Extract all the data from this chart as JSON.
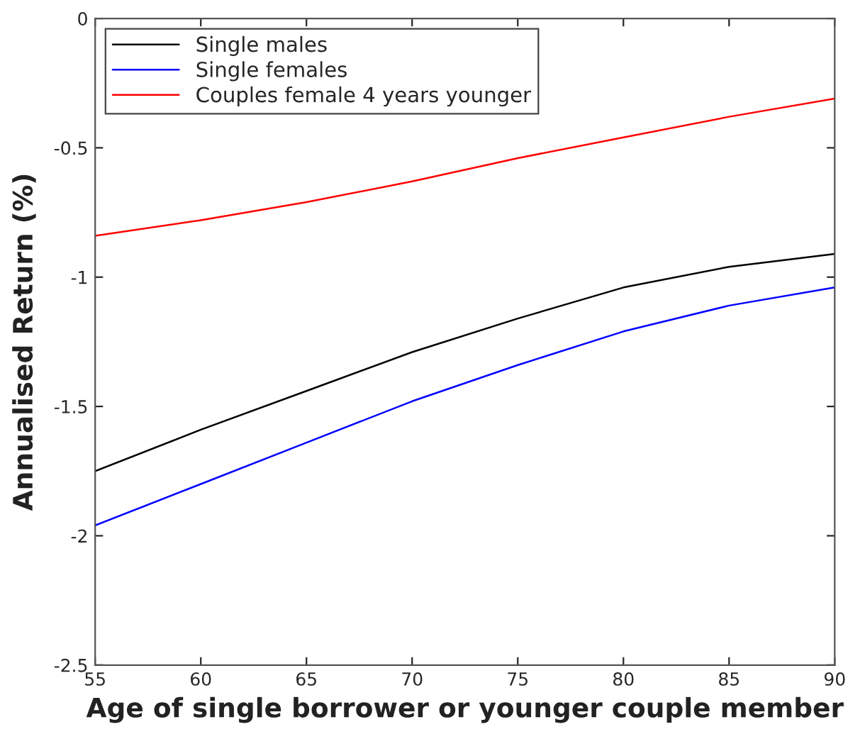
{
  "chart_data": {
    "type": "line",
    "xlabel": "Age of single borrower or younger couple member",
    "ylabel": "Annualised Return (%)",
    "x": [
      55,
      60,
      65,
      70,
      75,
      80,
      85,
      90
    ],
    "series": [
      {
        "name": "Single males",
        "color": "#000000",
        "values": [
          -1.75,
          -1.59,
          -1.44,
          -1.29,
          -1.16,
          -1.04,
          -0.96,
          -0.91
        ]
      },
      {
        "name": "Single females",
        "color": "#0000ff",
        "values": [
          -1.96,
          -1.8,
          -1.64,
          -1.48,
          -1.34,
          -1.21,
          -1.11,
          -1.04
        ]
      },
      {
        "name": "Couples female 4 years younger",
        "color": "#ff0000",
        "values": [
          -0.84,
          -0.78,
          -0.71,
          -0.63,
          -0.54,
          -0.46,
          -0.38,
          -0.31
        ]
      }
    ],
    "xlim": [
      55,
      90
    ],
    "ylim": [
      -2.5,
      0
    ],
    "xticks": [
      55,
      60,
      65,
      70,
      75,
      80,
      85,
      90
    ],
    "yticks": [
      -2.5,
      -2,
      -1.5,
      -1,
      -0.5,
      0
    ],
    "grid": false,
    "legend": "top left",
    "marker": "none",
    "line_style": "solid"
  }
}
